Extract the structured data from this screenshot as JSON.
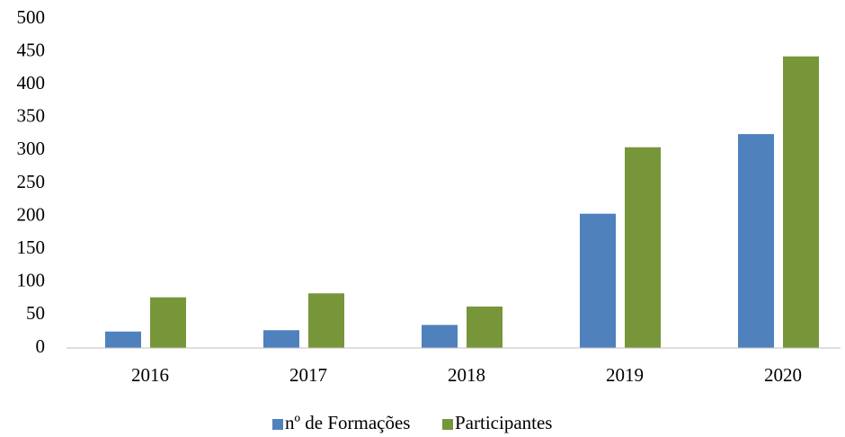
{
  "chart_data": {
    "type": "bar",
    "categories": [
      "2016",
      "2017",
      "2018",
      "2019",
      "2020"
    ],
    "series": [
      {
        "name": "nº de Formações",
        "color": "#4f81bd",
        "values": [
          25,
          27,
          35,
          204,
          325
        ]
      },
      {
        "name": "Participantes",
        "color": "#77963a",
        "values": [
          77,
          83,
          63,
          305,
          443
        ]
      }
    ],
    "ylim": [
      0,
      500
    ],
    "yticks": [
      0,
      50,
      100,
      150,
      200,
      250,
      300,
      350,
      400,
      450,
      500
    ],
    "grid": false,
    "legend": "bottom"
  }
}
